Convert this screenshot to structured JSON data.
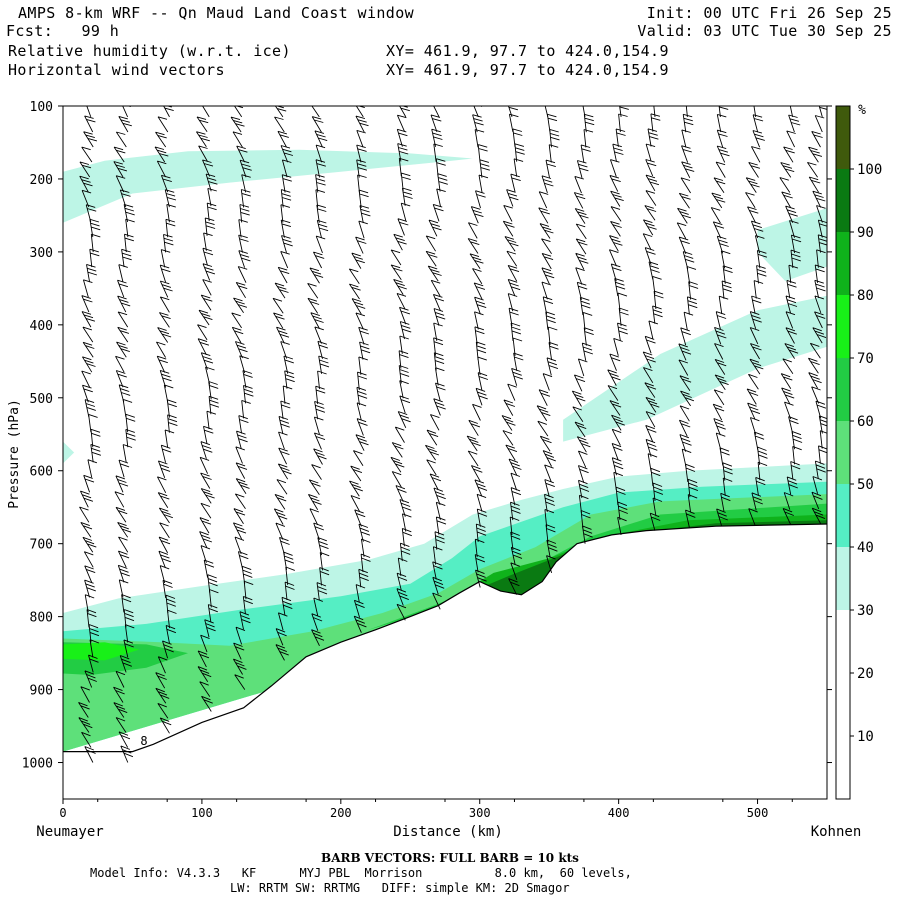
{
  "header": {
    "title_line": "AMPS 8-km WRF -- Qn Maud Land Coast window",
    "forecast_line": "Fcst:   99 h",
    "field1": "Relative humidity (w.r.t. ice)",
    "field2": "Horizontal wind vectors",
    "xy1": "XY= 461.9, 97.7 to 424.0,154.9",
    "xy2": "XY= 461.9, 97.7 to 424.0,154.9",
    "init": "Init: 00 UTC Fri 26 Sep 25",
    "valid": "Valid: 03 UTC Tue 30 Sep 25"
  },
  "footer": {
    "barb_note": "BARB VECTORS:  FULL BARB = 10 kts",
    "model_info_1": "Model Info: V4.3.3   KF      MYJ PBL  Morrison          8.0 km,  60 levels,",
    "model_info_2": "LW: RRTM SW: RRTMG   DIFF: simple KM: 2D Smagor"
  },
  "chart_data": {
    "type": "cross-section",
    "xlabel": "Distance (km)",
    "ylabel": "Pressure (hPa)",
    "xlim": [
      0,
      550
    ],
    "ylim": [
      1050,
      100
    ],
    "x_ticks": [
      0,
      100,
      200,
      300,
      400,
      500
    ],
    "y_ticks": [
      100,
      200,
      300,
      400,
      500,
      600,
      700,
      800,
      900,
      1000
    ],
    "left_endpoint": "Neumayer",
    "right_endpoint": "Kohnen",
    "colorbar": {
      "unit": "%",
      "ticks": [
        10,
        20,
        30,
        40,
        50,
        60,
        70,
        80,
        90,
        100
      ],
      "bins": [
        {
          "from": 0,
          "to": 30,
          "color": "#ffffff"
        },
        {
          "from": 30,
          "to": 40,
          "color": "#bdf5e6"
        },
        {
          "from": 40,
          "to": 50,
          "color": "#55eec4"
        },
        {
          "from": 50,
          "to": 60,
          "color": "#5ee07a"
        },
        {
          "from": 60,
          "to": 70,
          "color": "#22cc44"
        },
        {
          "from": 70,
          "to": 80,
          "color": "#18f018"
        },
        {
          "from": 80,
          "to": 90,
          "color": "#0fb21b"
        },
        {
          "from": 90,
          "to": 100,
          "color": "#0a7a12"
        },
        {
          "from": 100,
          "to": 110,
          "color": "#3f5a0c"
        }
      ]
    },
    "terrain_surface": [
      {
        "x": 0,
        "p": 985
      },
      {
        "x": 50,
        "p": 985
      },
      {
        "x": 65,
        "p": 975
      },
      {
        "x": 100,
        "p": 945
      },
      {
        "x": 130,
        "p": 925
      },
      {
        "x": 150,
        "p": 895
      },
      {
        "x": 175,
        "p": 855
      },
      {
        "x": 200,
        "p": 835
      },
      {
        "x": 225,
        "p": 818
      },
      {
        "x": 250,
        "p": 800
      },
      {
        "x": 270,
        "p": 785
      },
      {
        "x": 285,
        "p": 768
      },
      {
        "x": 300,
        "p": 752
      },
      {
        "x": 315,
        "p": 765
      },
      {
        "x": 330,
        "p": 770
      },
      {
        "x": 345,
        "p": 752
      },
      {
        "x": 355,
        "p": 725
      },
      {
        "x": 370,
        "p": 700
      },
      {
        "x": 395,
        "p": 688
      },
      {
        "x": 420,
        "p": 682
      },
      {
        "x": 470,
        "p": 676
      },
      {
        "x": 550,
        "p": 673
      }
    ],
    "rh_regions": [
      {
        "rh": 35,
        "points": [
          [
            0,
            795
          ],
          [
            40,
            775
          ],
          [
            100,
            758
          ],
          [
            160,
            742
          ],
          [
            220,
            722
          ],
          [
            260,
            700
          ],
          [
            295,
            660
          ],
          [
            330,
            640
          ],
          [
            360,
            625
          ],
          [
            400,
            608
          ],
          [
            450,
            600
          ],
          [
            500,
            595
          ],
          [
            550,
            590
          ],
          [
            550,
            673
          ],
          [
            0,
            985
          ]
        ]
      },
      {
        "rh": 35,
        "points": [
          [
            0,
            260
          ],
          [
            50,
            220
          ],
          [
            120,
            205
          ],
          [
            200,
            190
          ],
          [
            280,
            175
          ],
          [
            295,
            172
          ],
          [
            250,
            165
          ],
          [
            170,
            160
          ],
          [
            90,
            162
          ],
          [
            30,
            175
          ],
          [
            0,
            190
          ]
        ]
      },
      {
        "rh": 35,
        "points": [
          [
            360,
            560
          ],
          [
            420,
            530
          ],
          [
            500,
            460
          ],
          [
            550,
            430
          ],
          [
            550,
            360
          ],
          [
            500,
            380
          ],
          [
            430,
            440
          ],
          [
            360,
            530
          ]
        ]
      },
      {
        "rh": 35,
        "points": [
          [
            500,
            270
          ],
          [
            550,
            240
          ],
          [
            550,
            320
          ],
          [
            520,
            340
          ],
          [
            500,
            300
          ]
        ]
      },
      {
        "rh": 35,
        "points": [
          [
            0,
            560
          ],
          [
            8,
            575
          ],
          [
            0,
            590
          ]
        ]
      },
      {
        "rh": 45,
        "points": [
          [
            0,
            820
          ],
          [
            60,
            810
          ],
          [
            130,
            790
          ],
          [
            200,
            772
          ],
          [
            250,
            755
          ],
          [
            280,
            720
          ],
          [
            300,
            690
          ],
          [
            330,
            670
          ],
          [
            360,
            650
          ],
          [
            400,
            630
          ],
          [
            460,
            622
          ],
          [
            550,
            615
          ],
          [
            550,
            673
          ],
          [
            0,
            985
          ]
        ]
      },
      {
        "rh": 55,
        "points": [
          [
            0,
            830
          ],
          [
            70,
            835
          ],
          [
            120,
            840
          ],
          [
            180,
            820
          ],
          [
            230,
            795
          ],
          [
            270,
            768
          ],
          [
            300,
            735
          ],
          [
            340,
            705
          ],
          [
            380,
            660
          ],
          [
            430,
            642
          ],
          [
            550,
            632
          ],
          [
            550,
            673
          ],
          [
            0,
            985
          ]
        ]
      },
      {
        "rh": 65,
        "points": [
          [
            0,
            835
          ],
          [
            60,
            838
          ],
          [
            90,
            850
          ],
          [
            60,
            870
          ],
          [
            20,
            880
          ],
          [
            0,
            878
          ]
        ]
      },
      {
        "rh": 65,
        "points": [
          [
            220,
            818
          ],
          [
            260,
            790
          ],
          [
            300,
            760
          ],
          [
            340,
            730
          ],
          [
            380,
            690
          ],
          [
            430,
            660
          ],
          [
            550,
            645
          ],
          [
            550,
            673
          ],
          [
            400,
            690
          ],
          [
            330,
            770
          ],
          [
            270,
            790
          ]
        ]
      },
      {
        "rh": 75,
        "points": [
          [
            0,
            838
          ],
          [
            30,
            835
          ],
          [
            55,
            845
          ],
          [
            30,
            860
          ],
          [
            0,
            858
          ]
        ]
      },
      {
        "rh": 85,
        "points": [
          [
            280,
            775
          ],
          [
            310,
            740
          ],
          [
            350,
            720
          ],
          [
            390,
            690
          ],
          [
            450,
            668
          ],
          [
            550,
            660
          ],
          [
            550,
            673
          ],
          [
            420,
            682
          ],
          [
            330,
            770
          ]
        ]
      },
      {
        "rh": 95,
        "points": [
          [
            295,
            765
          ],
          [
            320,
            745
          ],
          [
            360,
            715
          ],
          [
            400,
            688
          ],
          [
            470,
            672
          ],
          [
            550,
            668
          ],
          [
            550,
            673
          ],
          [
            420,
            682
          ],
          [
            330,
            770
          ]
        ]
      }
    ],
    "wind_barb_columns": [
      {
        "x": 20,
        "top_p": 115,
        "bottom_p": 1000
      },
      {
        "x": 45,
        "top_p": 115,
        "bottom_p": 1000
      },
      {
        "x": 75,
        "top_p": 115,
        "bottom_p": 960
      },
      {
        "x": 105,
        "top_p": 115,
        "bottom_p": 930
      },
      {
        "x": 130,
        "top_p": 115,
        "bottom_p": 900
      },
      {
        "x": 160,
        "top_p": 115,
        "bottom_p": 860
      },
      {
        "x": 185,
        "top_p": 115,
        "bottom_p": 840
      },
      {
        "x": 215,
        "top_p": 115,
        "bottom_p": 822
      },
      {
        "x": 245,
        "top_p": 115,
        "bottom_p": 805
      },
      {
        "x": 270,
        "top_p": 115,
        "bottom_p": 790
      },
      {
        "x": 300,
        "top_p": 115,
        "bottom_p": 760
      },
      {
        "x": 325,
        "top_p": 115,
        "bottom_p": 770
      },
      {
        "x": 350,
        "top_p": 115,
        "bottom_p": 740
      },
      {
        "x": 375,
        "top_p": 115,
        "bottom_p": 700
      },
      {
        "x": 400,
        "top_p": 115,
        "bottom_p": 688
      },
      {
        "x": 425,
        "top_p": 115,
        "bottom_p": 682
      },
      {
        "x": 450,
        "top_p": 115,
        "bottom_p": 678
      },
      {
        "x": 475,
        "top_p": 115,
        "bottom_p": 676
      },
      {
        "x": 500,
        "top_p": 115,
        "bottom_p": 675
      },
      {
        "x": 525,
        "top_p": 115,
        "bottom_p": 674
      },
      {
        "x": 545,
        "top_p": 115,
        "bottom_p": 673
      }
    ],
    "annotation": "8"
  }
}
